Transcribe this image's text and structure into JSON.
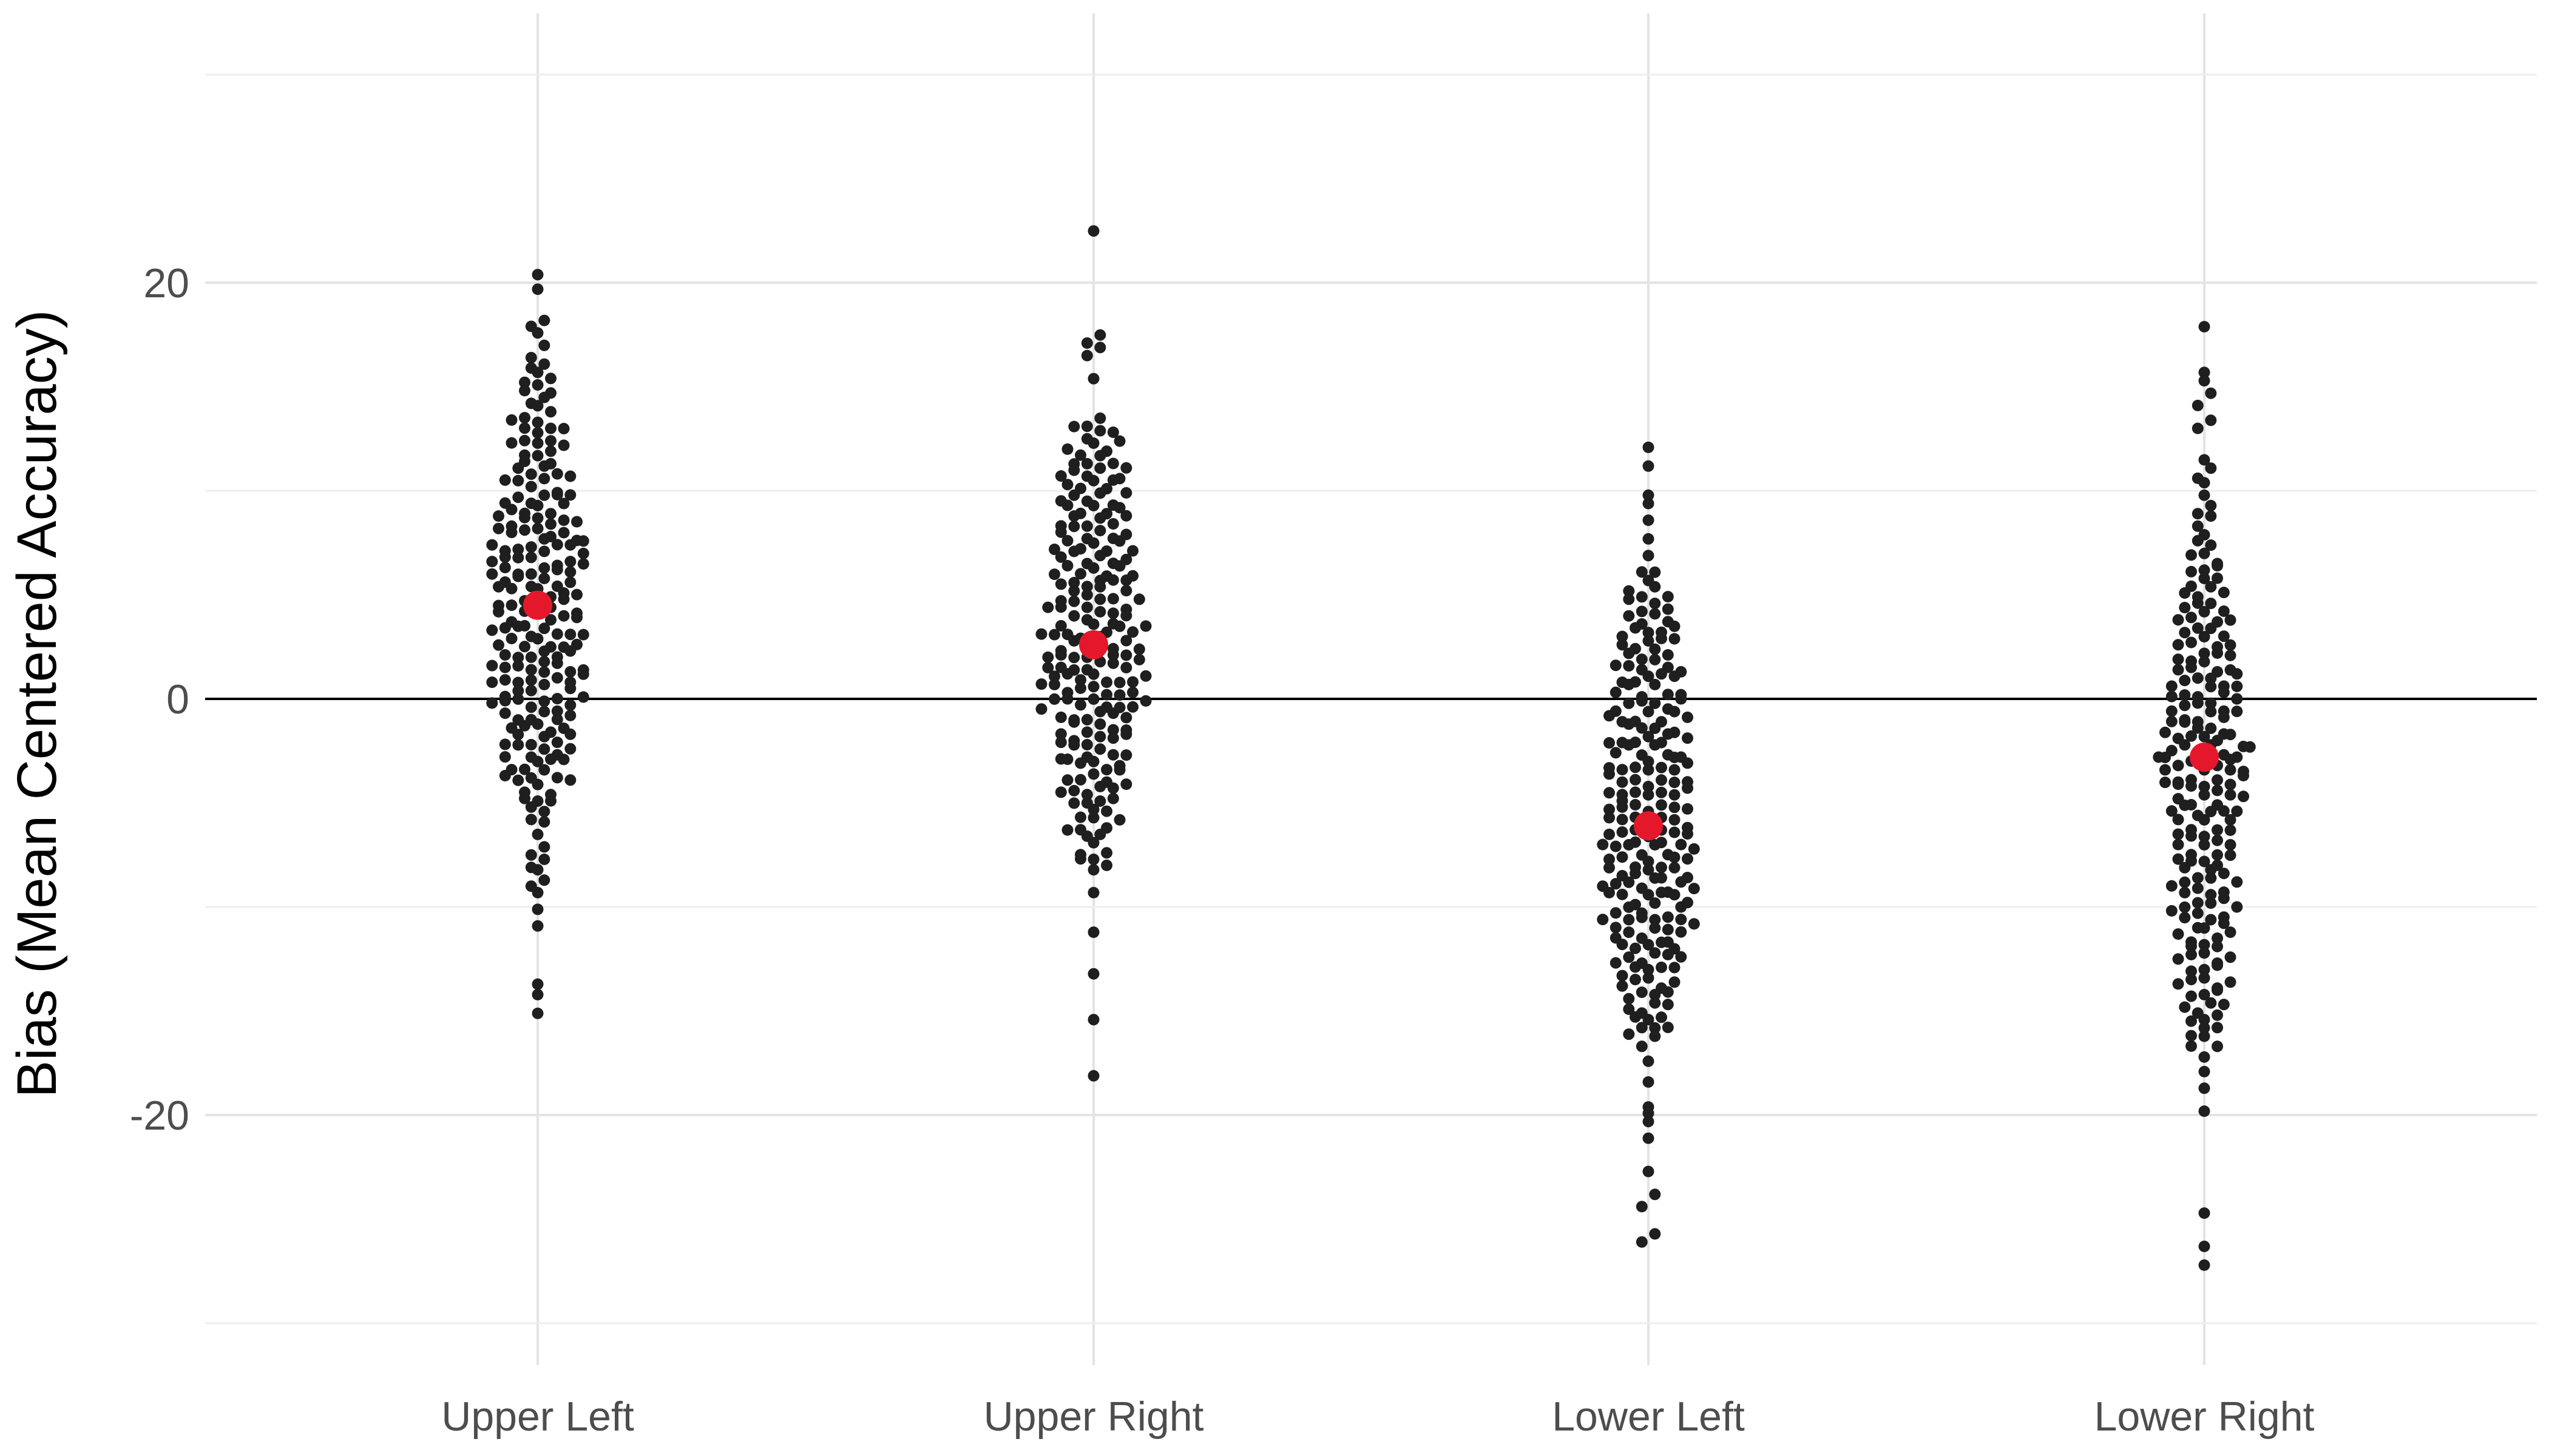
{
  "chart_data": {
    "type": "scatter",
    "subtype": "beeswarm",
    "title": "",
    "xlabel": "",
    "ylabel": "Bias (Mean Centered Accuracy)",
    "categories": [
      "Upper Left",
      "Upper Right",
      "Lower Left",
      "Lower Right"
    ],
    "ylim": [
      -30,
      30
    ],
    "y_ticks": [
      {
        "value": 20,
        "label": "20"
      },
      {
        "value": 0,
        "label": "0"
      },
      {
        "value": -20,
        "label": "-20"
      }
    ],
    "y_minor_gridlines": [
      -30,
      -10,
      10,
      30
    ],
    "grid": true,
    "reference_line": {
      "y": 0,
      "color": "#000000"
    },
    "legend": "none",
    "point_color": "#1f1f1f",
    "mean_color": "#e5182b",
    "groups": [
      {
        "name": "Upper Left",
        "mean": 4.5,
        "values": [
          20.3,
          19.6,
          18.1,
          17.9,
          17.5,
          16.9,
          16.4,
          16.0,
          15.9,
          15.6,
          15.4,
          15.0,
          14.7,
          14.4,
          14.0,
          13.8,
          13.6,
          13.2,
          13.0,
          12.7,
          12.4,
          12.2,
          11.9,
          11.6,
          11.3,
          11.1,
          10.8,
          10.5,
          10.2,
          10.0,
          9.7,
          9.4,
          9.2,
          8.9,
          8.6,
          8.4,
          8.1,
          7.8,
          7.6,
          7.3,
          7.0,
          6.8,
          6.5,
          6.2,
          6.0,
          5.7,
          5.4,
          5.2,
          4.9,
          4.6,
          4.4,
          4.1,
          3.8,
          3.6,
          3.3,
          3.0,
          2.8,
          2.5,
          2.2,
          2.0,
          1.7,
          1.4,
          1.2,
          0.9,
          0.6,
          0.4,
          0.1,
          -0.2,
          -0.4,
          -0.7,
          -1.0,
          -1.3,
          -1.6,
          -1.9,
          -2.2,
          -2.5,
          -2.8,
          -3.1,
          -3.5,
          -3.8,
          -4.2,
          -4.6,
          -5.0,
          -5.5,
          -6.0,
          -6.6,
          -7.2,
          -7.8,
          -8.3,
          -8.8,
          -9.4,
          -10.2,
          -11.0,
          -13.8,
          -14.3,
          -15.2,
          13.1,
          11.5,
          9.9,
          8.8,
          7.5,
          6.7,
          5.5,
          4.8,
          3.9,
          3.2,
          2.6,
          1.8,
          1.1,
          0.3,
          -0.5,
          -1.2,
          -2.0,
          -2.9,
          -3.7,
          -4.4,
          -5.2,
          12.5,
          10.9,
          9.6,
          8.2,
          7.1,
          6.3,
          5.0,
          4.3,
          3.4,
          2.4,
          1.5,
          0.7,
          -0.1,
          -0.9,
          -1.8,
          -2.6,
          -3.3,
          -4.0,
          14.9,
          12.9,
          11.0,
          9.0,
          7.9,
          6.6,
          5.8,
          4.7,
          3.7,
          2.9,
          2.1,
          1.3,
          0.5,
          -0.3,
          -1.1,
          -2.3,
          -3.0,
          -4.9,
          15.3,
          13.4,
          10.4,
          8.0,
          6.9,
          5.3,
          4.0,
          2.7,
          1.6,
          0.2,
          -0.8,
          -1.5,
          -2.4,
          -3.9,
          11.8,
          9.3,
          7.4,
          5.9,
          4.5,
          3.1,
          1.9,
          0.8,
          -0.6,
          -1.7,
          -3.4,
          12.1,
          8.5,
          6.1,
          3.5,
          1.0,
          -2.7,
          10.7,
          7.7,
          5.6,
          2.3,
          -0.0,
          9.8,
          6.4,
          4.2,
          1.3,
          8.3,
          5.1,
          7.2,
          6.9,
          8.1,
          6.4,
          9.1,
          5.7,
          8.6,
          4.4,
          2.2,
          3.0,
          1.1,
          0.0,
          7.5,
          6.0,
          14.2,
          12.3,
          10.6,
          9.5,
          8.7,
          7.4,
          6.6,
          5.3,
          4.1,
          3.3,
          2.5,
          1.6,
          0.8,
          -0.2,
          -1.4,
          -2.1,
          -3.6,
          -4.7,
          -5.8,
          -7.5,
          -8.1,
          -9.0
        ],
        "spread_range": [
          -15.2,
          20.3
        ]
      },
      {
        "name": "Upper Right",
        "mean": 2.6,
        "values": [
          22.4,
          17.4,
          17.1,
          16.8,
          16.5,
          15.3,
          13.4,
          13.1,
          12.8,
          12.5,
          12.2,
          11.9,
          11.6,
          11.3,
          11.0,
          10.7,
          10.4,
          10.1,
          9.8,
          9.5,
          9.2,
          8.9,
          8.6,
          8.3,
          8.0,
          7.7,
          7.4,
          7.1,
          6.8,
          6.5,
          6.2,
          5.9,
          5.6,
          5.3,
          5.0,
          4.7,
          4.4,
          4.1,
          3.8,
          3.5,
          3.2,
          2.9,
          2.6,
          2.3,
          2.0,
          1.7,
          1.4,
          1.1,
          0.8,
          0.5,
          0.2,
          -0.1,
          -0.4,
          -0.7,
          -1.0,
          -1.3,
          -1.6,
          -1.9,
          -2.2,
          -2.5,
          -2.8,
          -3.1,
          -3.4,
          -3.7,
          -4.0,
          -4.3,
          -4.6,
          -5.0,
          -5.4,
          -5.8,
          -6.2,
          -6.6,
          -7.0,
          -7.4,
          -7.8,
          -8.3,
          -9.4,
          -11.3,
          -13.3,
          -15.5,
          -18.2,
          12.9,
          11.4,
          10.2,
          9.0,
          7.8,
          6.6,
          5.4,
          4.2,
          3.0,
          1.8,
          0.6,
          -0.6,
          -1.8,
          -3.0,
          -4.2,
          -5.4,
          -6.6,
          -8.0,
          11.8,
          10.6,
          9.4,
          8.2,
          7.0,
          5.8,
          4.6,
          3.4,
          2.2,
          1.0,
          -0.2,
          -1.4,
          -2.6,
          -3.8,
          -5.0,
          -6.2,
          -7.4,
          12.3,
          10.9,
          9.7,
          8.5,
          7.3,
          6.1,
          4.9,
          3.7,
          2.5,
          1.3,
          0.1,
          -1.1,
          -2.3,
          -3.5,
          -4.7,
          -5.9,
          11.1,
          9.9,
          8.7,
          7.5,
          6.3,
          5.1,
          3.9,
          2.7,
          1.5,
          0.3,
          -0.9,
          -2.1,
          -3.3,
          -4.5,
          10.5,
          9.1,
          7.9,
          6.7,
          5.5,
          4.3,
          3.1,
          1.9,
          0.7,
          -0.5,
          -1.7,
          -2.9,
          -4.1,
          8.8,
          7.6,
          6.4,
          5.2,
          4.0,
          2.8,
          1.6,
          0.4,
          -0.8,
          -2.0,
          7.2,
          6.0,
          4.8,
          3.6,
          2.4,
          1.2,
          0.0,
          -1.2,
          5.7,
          4.5,
          3.3,
          2.1,
          0.9,
          -0.3,
          3.0,
          1.8,
          0.6,
          1.5,
          1.0,
          2.2,
          -0.1,
          13.0,
          12.0,
          11.2,
          10.3,
          9.6,
          8.4,
          7.1,
          5.9,
          4.7,
          3.5,
          2.3,
          1.1,
          -0.1,
          -1.5,
          -2.7,
          -3.9,
          -5.1,
          -6.3,
          -7.6,
          10.8,
          9.3,
          8.1,
          6.9,
          5.6,
          4.4,
          3.2,
          2.0,
          0.8,
          -0.4,
          -1.6,
          -2.8,
          -4.4,
          -5.6
        ],
        "spread_range": [
          -18.2,
          22.4
        ]
      },
      {
        "name": "Lower Left",
        "mean": -6.1,
        "values": [
          12.0,
          11.1,
          9.7,
          9.3,
          8.5,
          7.6,
          6.8,
          6.0,
          5.3,
          4.9,
          4.5,
          4.0,
          3.6,
          3.1,
          2.7,
          2.3,
          1.8,
          1.4,
          1.0,
          0.6,
          0.1,
          -0.3,
          -0.7,
          -1.1,
          -1.5,
          -1.9,
          -2.3,
          -2.7,
          -3.1,
          -3.5,
          -3.9,
          -4.3,
          -4.7,
          -5.1,
          -5.5,
          -5.9,
          -6.3,
          -6.7,
          -7.1,
          -7.5,
          -7.9,
          -8.3,
          -8.7,
          -9.1,
          -9.5,
          -9.9,
          -10.3,
          -10.7,
          -11.1,
          -11.5,
          -11.9,
          -12.3,
          -12.7,
          -13.1,
          -13.5,
          -13.9,
          -14.3,
          -14.7,
          -15.1,
          -15.5,
          -15.9,
          -16.3,
          -16.7,
          -17.5,
          -18.5,
          -19.7,
          -20.0,
          -20.4,
          -21.2,
          -22.8,
          -23.9,
          -24.4,
          -25.8,
          -26.1,
          5.6,
          4.2,
          2.9,
          1.6,
          0.3,
          -1.0,
          -2.1,
          -3.3,
          -4.5,
          -5.7,
          -6.9,
          -8.1,
          -9.3,
          -10.5,
          -11.7,
          -12.9,
          -14.1,
          -15.3,
          5.0,
          3.8,
          2.5,
          1.2,
          -0.1,
          -1.4,
          -2.6,
          -3.8,
          -5.0,
          -6.2,
          -7.4,
          -8.6,
          -9.8,
          -11.0,
          -12.2,
          -13.4,
          -14.6,
          -15.8,
          4.4,
          3.2,
          1.9,
          0.6,
          -0.7,
          -2.0,
          -3.2,
          -4.4,
          -5.6,
          -6.8,
          -8.0,
          -9.2,
          -10.4,
          -11.6,
          -12.8,
          -14.0,
          -15.2,
          3.5,
          2.2,
          0.9,
          -0.4,
          -1.7,
          -2.9,
          -4.1,
          -5.3,
          -6.5,
          -7.7,
          -8.9,
          -10.1,
          -11.3,
          -12.5,
          -13.7,
          2.8,
          1.5,
          0.2,
          -1.1,
          -2.3,
          -3.5,
          -4.7,
          -5.9,
          -7.1,
          -8.3,
          -9.5,
          -10.7,
          -11.9,
          -13.0,
          1.0,
          -0.3,
          -1.6,
          -2.8,
          -4.0,
          -5.2,
          -6.4,
          -7.6,
          -8.8,
          -10.0,
          -11.2,
          -12.4,
          -0.8,
          -2.1,
          -3.4,
          -4.6,
          -5.8,
          -7.0,
          -8.2,
          -9.4,
          -10.6,
          -3.9,
          -5.2,
          -6.4,
          -7.6,
          -8.8,
          -7.0,
          -8.5,
          -9.2,
          -10.9,
          6.1,
          5.1,
          3.9,
          2.6,
          1.3,
          0.0,
          -1.3,
          -2.5,
          -3.7,
          -4.9,
          -6.1,
          -7.3,
          -8.5,
          -9.7,
          -10.9,
          -12.1,
          -13.3,
          -14.5,
          -15.7,
          4.7,
          3.4,
          2.1,
          0.8,
          -0.5,
          -1.8,
          -3.0,
          -4.2,
          -5.4,
          -6.6,
          -7.8,
          -9.0,
          -10.2,
          -11.4,
          -12.6,
          -13.8,
          -15.0,
          -16.2,
          3.0,
          1.7,
          0.4,
          -0.9,
          -2.2,
          -3.4,
          -4.6,
          -5.8,
          -7.0,
          -8.2,
          -9.4,
          -10.6,
          -11.8
        ],
        "spread_range": [
          -26.1,
          12.0
        ]
      },
      {
        "name": "Lower Right",
        "mean": -2.8,
        "values": [
          17.8,
          15.6,
          15.2,
          14.6,
          14.1,
          13.3,
          13.0,
          11.4,
          11.0,
          10.6,
          10.3,
          9.7,
          9.2,
          8.7,
          8.3,
          7.8,
          7.3,
          6.9,
          6.5,
          6.1,
          5.7,
          5.3,
          4.9,
          4.5,
          4.1,
          3.7,
          3.3,
          2.9,
          2.5,
          2.1,
          1.7,
          1.3,
          0.9,
          0.5,
          0.1,
          -0.3,
          -0.7,
          -1.1,
          -1.5,
          -1.9,
          -2.3,
          -2.7,
          -3.1,
          -3.5,
          -3.9,
          -4.3,
          -4.7,
          -5.1,
          -5.5,
          -5.9,
          -6.3,
          -6.7,
          -7.1,
          -7.5,
          -7.9,
          -8.3,
          -8.7,
          -9.1,
          -9.5,
          -9.9,
          -10.3,
          -10.7,
          -11.1,
          -11.5,
          -11.9,
          -12.3,
          -12.7,
          -13.1,
          -13.5,
          -13.9,
          -14.3,
          -14.7,
          -15.1,
          -15.5,
          -15.9,
          -16.3,
          -16.7,
          -18.0,
          -18.8,
          -19.9,
          -24.8,
          -26.4,
          -27.3,
          7.0,
          5.8,
          4.6,
          3.4,
          2.2,
          1.0,
          -0.2,
          -1.4,
          -2.6,
          -3.8,
          -5.0,
          -6.2,
          -7.4,
          -8.6,
          -9.8,
          -11.0,
          -12.2,
          -13.4,
          -14.6,
          -15.8,
          6.4,
          5.2,
          4.0,
          2.8,
          1.6,
          0.4,
          -0.8,
          -2.0,
          -3.2,
          -4.4,
          -5.6,
          -6.8,
          -8.0,
          -9.2,
          -10.4,
          -11.6,
          -12.8,
          -14.0,
          -15.2,
          4.3,
          3.1,
          1.9,
          0.7,
          -0.5,
          -1.7,
          -2.9,
          -4.1,
          -5.3,
          -6.5,
          -7.7,
          -8.9,
          -10.1,
          -11.3,
          -12.5,
          -13.7,
          3.7,
          2.5,
          1.3,
          0.1,
          -1.1,
          -2.3,
          -3.5,
          -4.7,
          -5.9,
          -7.1,
          -8.3,
          -9.5,
          -10.7,
          -11.9,
          2.0,
          0.8,
          -0.4,
          -1.6,
          -2.8,
          -4.0,
          -5.2,
          -6.4,
          -7.6,
          -8.8,
          -10.0,
          1.2,
          0.0,
          -1.2,
          -2.4,
          -3.6,
          -4.8,
          0.6,
          -0.6,
          -1.8,
          -3.0,
          -4.2,
          -5.4,
          -3.5,
          -2.4,
          -4.1,
          -1.9,
          -2.8,
          -3.2,
          8.9,
          7.6,
          6.2,
          5.0,
          3.8,
          2.6,
          1.4,
          0.2,
          -1.0,
          -2.2,
          -3.4,
          -4.6,
          -5.8,
          -7.0,
          -8.2,
          -9.4,
          -10.6,
          -11.8,
          -13.0,
          -14.2,
          -15.4,
          -16.6,
          5.5,
          4.3,
          3.1,
          1.9,
          0.7,
          -0.5,
          -1.7,
          -2.9,
          -4.1,
          -5.3,
          -6.5,
          -7.7,
          -8.9,
          -10.1,
          -11.3,
          -12.5,
          -13.7,
          -14.9,
          -16.1,
          -17.3
        ],
        "spread_range": [
          -27.3,
          17.8
        ]
      }
    ]
  }
}
